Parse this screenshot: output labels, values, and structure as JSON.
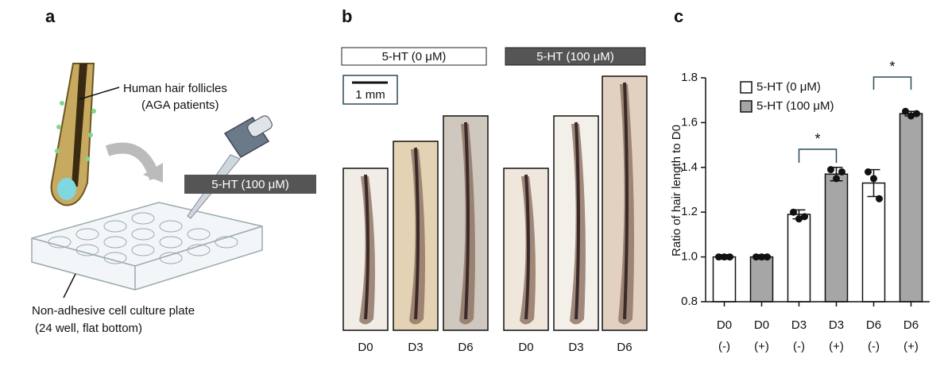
{
  "panel_a": {
    "letter": "a",
    "follicle_label": [
      "Human hair follicles",
      "(AGA patients)"
    ],
    "treatment": "5-HT (100 μM)",
    "plate_label": [
      "Non-adhesive cell culture plate",
      "(24 well, flat bottom)"
    ]
  },
  "panel_b": {
    "letter": "b",
    "control": "5-HT (0 μM)",
    "treated": "5-HT (100 μM)",
    "scale_bar": "1 mm",
    "days": [
      "D0",
      "D3",
      "D6",
      "D0",
      "D3",
      "D6"
    ]
  },
  "chart_data": {
    "type": "bar",
    "letter": "c",
    "y_label": "Ratio of hair length to D0",
    "categories": [
      [
        "D0",
        "(-)"
      ],
      [
        "D0",
        "(+)"
      ],
      [
        "D3",
        "(-)"
      ],
      [
        "D3",
        "(+)"
      ],
      [
        "D6",
        "(-)"
      ],
      [
        "D6",
        "(+)"
      ]
    ],
    "series": [
      {
        "name": "5-HT (0 μM)",
        "color": "#ffffff",
        "values": [
          1.0,
          null,
          1.19,
          null,
          1.33,
          null
        ],
        "errors": [
          0.01,
          null,
          0.02,
          null,
          0.06,
          null
        ],
        "points": [
          [
            1.0,
            1.0,
            1.0
          ],
          null,
          [
            1.2,
            1.17,
            1.18
          ],
          null,
          [
            1.38,
            1.35,
            1.26
          ],
          null
        ]
      },
      {
        "name": "5-HT (100 μM)",
        "color": "#a6a6a6",
        "values": [
          null,
          1.0,
          null,
          1.37,
          null,
          1.64
        ],
        "errors": [
          null,
          0.01,
          null,
          0.03,
          null,
          0.01
        ],
        "points": [
          null,
          [
            1.0,
            1.0,
            1.0
          ],
          null,
          [
            1.39,
            1.35,
            1.38
          ],
          null,
          [
            1.65,
            1.63,
            1.64
          ]
        ]
      }
    ],
    "annotations": [
      "*",
      "*"
    ],
    "ylim": [
      0.8,
      1.8
    ],
    "yticks": [
      0.8,
      {
        "value": 1.0,
        "label": "1.0"
      },
      1.2,
      1.4,
      1.6,
      1.8
    ]
  }
}
